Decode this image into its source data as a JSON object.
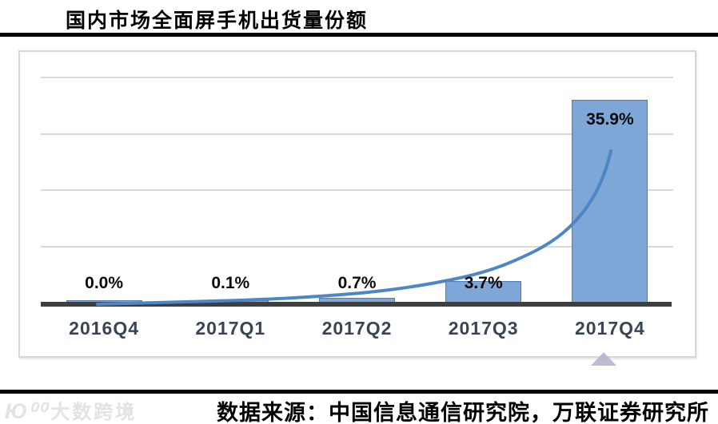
{
  "header": {
    "title": "国内市场全面屏手机出货量份额"
  },
  "footer": {
    "source": "数据来源：中国信息通信研究院，万联证券研究所",
    "watermark_logo": "Ю⁰⁰",
    "watermark_brand": "大数跨境"
  },
  "chart_data": {
    "type": "bar",
    "title": "国内市场全面屏手机出货量份额",
    "categories": [
      "2016Q4",
      "2017Q1",
      "2017Q2",
      "2017Q3",
      "2017Q4"
    ],
    "values": [
      0.0,
      0.1,
      0.7,
      3.7,
      35.9
    ],
    "data_labels": [
      "0.0%",
      "0.1%",
      "0.7%",
      "3.7%",
      "35.9%"
    ],
    "xlabel": "",
    "ylabel": "",
    "ylim": [
      0,
      40
    ],
    "gridlines_percent": [
      10,
      20,
      30,
      40
    ],
    "y_axis_labels_visible": false,
    "legend": "none",
    "trendline": "exponential",
    "colors": {
      "bar_fill": "#7ea7d8",
      "bar_border": "#4a7cb5",
      "trendline": "#4e86c5",
      "axis_line": "#3f3f3f",
      "gridline": "#d9d9d9",
      "data_label": "#0a0a0a",
      "category_label": "#3a4457"
    }
  }
}
